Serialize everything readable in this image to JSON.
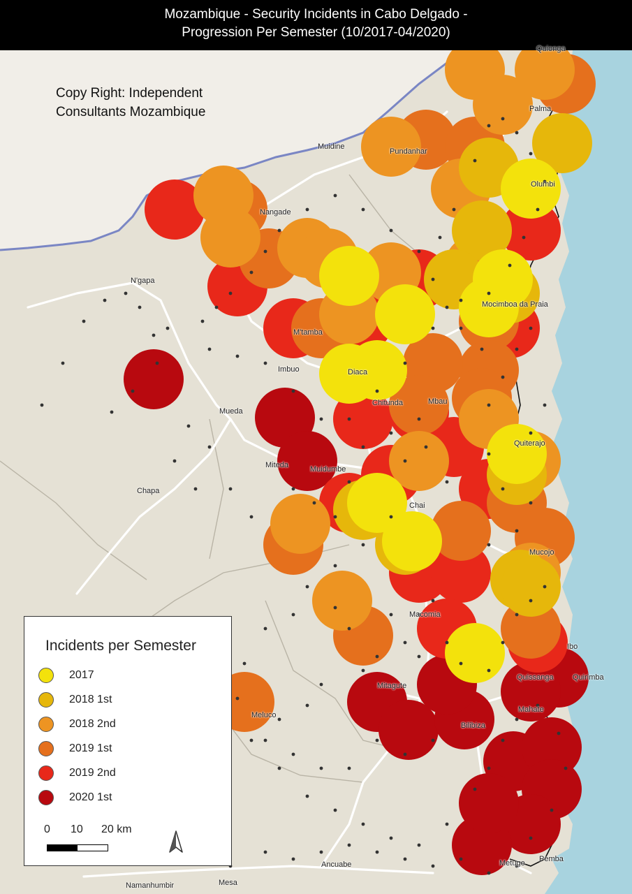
{
  "title": {
    "line1": "Mozambique - Security Incidents in Cabo Delgado -",
    "line2": "Progression Per Semester  (10/2017-04/2020)"
  },
  "copyright": {
    "line1": "Copy Right: Independent",
    "line2": "Consultants Mozambique"
  },
  "colors": {
    "ocean": "#a8d3df",
    "tanzania": "#f1eee8",
    "land": "#e5e1d5",
    "border": "#7a86c4",
    "road": "#ffffff",
    "2017": "#f3e20c",
    "2018_1st": "#e6b70b",
    "2018_2nd": "#ed9422",
    "2019_1st": "#e5701d",
    "2019_2nd": "#e8281a",
    "2020_1st": "#b8090f"
  },
  "places": [
    {
      "name": "Quionga"
    },
    {
      "name": "Palma"
    },
    {
      "name": "Olumbi"
    },
    {
      "name": "Muidine"
    },
    {
      "name": "Pundanhar"
    },
    {
      "name": "Nangade"
    },
    {
      "name": "N'gapa"
    },
    {
      "name": "Mocimboa da Praia"
    },
    {
      "name": "M'tamba"
    },
    {
      "name": "Imbuo"
    },
    {
      "name": "Diaca"
    },
    {
      "name": "Mueda"
    },
    {
      "name": "Chitunda"
    },
    {
      "name": "Mbau"
    },
    {
      "name": "Quiterajo"
    },
    {
      "name": "Miteda"
    },
    {
      "name": "Muidumbe"
    },
    {
      "name": "Chapa"
    },
    {
      "name": "Chai"
    },
    {
      "name": "Mucojo"
    },
    {
      "name": "Macomia"
    },
    {
      "name": "Ibo"
    },
    {
      "name": "Quissanga"
    },
    {
      "name": "Quirimba"
    },
    {
      "name": "Meluco"
    },
    {
      "name": "Mitagute"
    },
    {
      "name": "Bilibiza"
    },
    {
      "name": "Mahate"
    },
    {
      "name": "Ancuabe"
    },
    {
      "name": "Pemba"
    },
    {
      "name": "Metuge"
    },
    {
      "name": "Namanhumbir"
    },
    {
      "name": "Mesa"
    }
  ],
  "legend": {
    "title": "Incidents per Semester",
    "items": [
      {
        "label": "2017",
        "color": "#f3e20c"
      },
      {
        "label": "2018 1st",
        "color": "#e6b70b"
      },
      {
        "label": "2018 2nd",
        "color": "#ed9422"
      },
      {
        "label": "2019 1st",
        "color": "#e5701d"
      },
      {
        "label": "2019 2nd",
        "color": "#e8281a"
      },
      {
        "label": "2020 1st",
        "color": "#b8090f"
      }
    ]
  },
  "scale": {
    "label_0": "0",
    "label_10": "10",
    "label_20": "20 km"
  }
}
